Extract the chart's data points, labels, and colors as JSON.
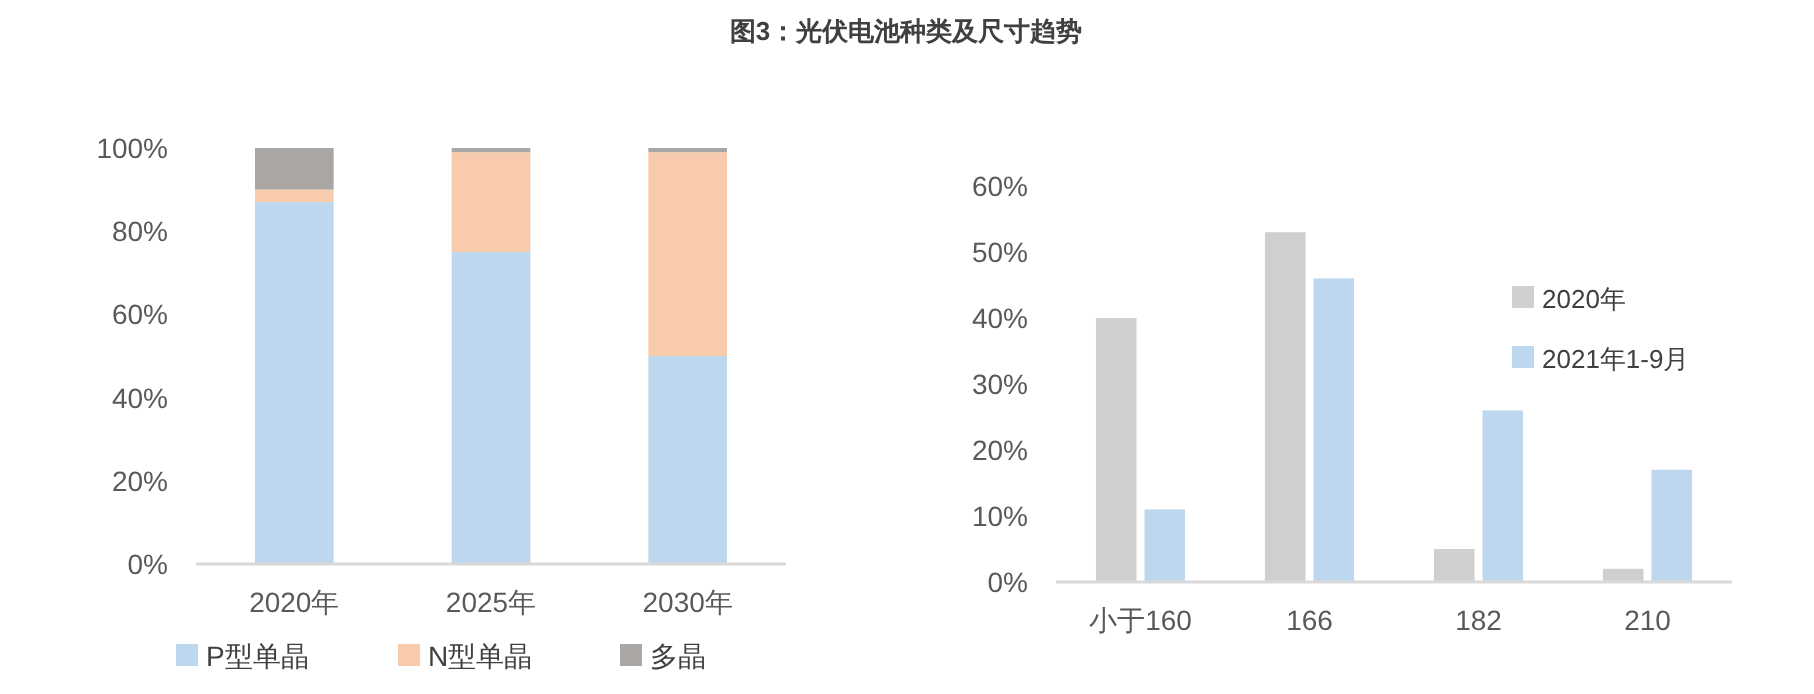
{
  "chart_data": [
    {
      "type": "bar",
      "title": "图3：光伏电池种类及尺寸趋势",
      "categories": [
        "2020年",
        "2025年",
        "2030年"
      ],
      "stacked": true,
      "series": [
        {
          "name": "P型单晶",
          "color": "#bdd7ee",
          "values": [
            87,
            75,
            50
          ]
        },
        {
          "name": "N型单晶",
          "color": "#f8cbad",
          "values": [
            3,
            24,
            49
          ]
        },
        {
          "name": "多晶",
          "color": "#aaa6a4",
          "values": [
            10,
            1,
            1
          ]
        }
      ],
      "ylim": [
        0,
        100
      ],
      "yticks": [
        {
          "value": 0,
          "label": "0%"
        },
        {
          "value": 20,
          "label": "20%"
        },
        {
          "value": 40,
          "label": "40%"
        },
        {
          "value": 60,
          "label": "60%"
        },
        {
          "value": 80,
          "label": "80%"
        },
        {
          "value": 100,
          "label": "100%"
        }
      ],
      "grid": false,
      "legend": "bottom"
    },
    {
      "type": "bar",
      "categories": [
        "小于160",
        "166",
        "182",
        "210"
      ],
      "series": [
        {
          "name": "2020年",
          "color": "#d0cece",
          "values": [
            40,
            53,
            5,
            2
          ]
        },
        {
          "name": "2021年1-9月",
          "color": "#bdd7ee",
          "values": [
            11,
            46,
            26,
            17
          ]
        }
      ],
      "ylim": [
        0,
        60
      ],
      "yticks": [
        {
          "value": 0,
          "label": "0%"
        },
        {
          "value": 10,
          "label": "10%"
        },
        {
          "value": 20,
          "label": "20%"
        },
        {
          "value": 30,
          "label": "30%"
        },
        {
          "value": 40,
          "label": "40%"
        },
        {
          "value": 50,
          "label": "50%"
        },
        {
          "value": 60,
          "label": "60%"
        }
      ],
      "grid": false,
      "legend": "right"
    }
  ]
}
